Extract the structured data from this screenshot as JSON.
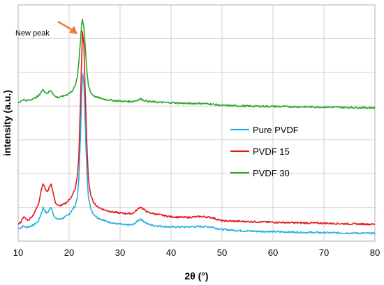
{
  "chart_data": {
    "type": "line",
    "xlabel": "2θ (°)",
    "ylabel": "intensity (a.u.)",
    "xlim": [
      10,
      80
    ],
    "x_ticks": [
      10,
      20,
      30,
      40,
      50,
      60,
      70,
      80
    ],
    "x_tick_labels": [
      "10",
      "20",
      "30",
      "40",
      "50",
      "60",
      "70",
      "80"
    ],
    "ylim": [
      0,
      7
    ],
    "y_ticks": [
      0,
      1,
      2,
      3,
      4,
      5,
      6,
      7
    ],
    "y_tick_labels_visible": false,
    "grid": true,
    "legend_position": "right",
    "annotation": {
      "text": "New peak",
      "x": 22.2,
      "y": 6.0,
      "arrow_color": "#ed7d31"
    },
    "series": [
      {
        "name": "Pure PVDF",
        "color": "#21aee0",
        "points": [
          [
            10.0,
            0.38
          ],
          [
            10.5,
            0.39
          ],
          [
            11.0,
            0.45
          ],
          [
            11.5,
            0.41
          ],
          [
            12.0,
            0.42
          ],
          [
            13.0,
            0.47
          ],
          [
            14.0,
            0.6
          ],
          [
            14.5,
            0.8
          ],
          [
            14.9,
            1.0
          ],
          [
            15.3,
            0.88
          ],
          [
            15.7,
            0.82
          ],
          [
            16.2,
            0.95
          ],
          [
            16.5,
            1.0
          ],
          [
            16.9,
            0.8
          ],
          [
            17.3,
            0.68
          ],
          [
            17.8,
            0.65
          ],
          [
            18.5,
            0.66
          ],
          [
            19.3,
            0.72
          ],
          [
            20.0,
            0.8
          ],
          [
            20.6,
            0.92
          ],
          [
            21.2,
            1.05
          ],
          [
            21.6,
            1.3
          ],
          [
            21.9,
            1.8
          ],
          [
            22.2,
            3.0
          ],
          [
            22.5,
            4.5
          ],
          [
            22.7,
            4.98
          ],
          [
            22.9,
            4.7
          ],
          [
            23.2,
            3.3
          ],
          [
            23.5,
            2.0
          ],
          [
            23.8,
            1.3
          ],
          [
            24.2,
            0.98
          ],
          [
            24.7,
            0.82
          ],
          [
            25.5,
            0.7
          ],
          [
            27.0,
            0.6
          ],
          [
            29.0,
            0.52
          ],
          [
            31.0,
            0.48
          ],
          [
            32.5,
            0.48
          ],
          [
            33.5,
            0.6
          ],
          [
            34.0,
            0.66
          ],
          [
            34.5,
            0.6
          ],
          [
            35.5,
            0.5
          ],
          [
            37.0,
            0.45
          ],
          [
            40.0,
            0.42
          ],
          [
            43.0,
            0.42
          ],
          [
            46.0,
            0.43
          ],
          [
            48.0,
            0.42
          ],
          [
            50.0,
            0.34
          ],
          [
            55.0,
            0.3
          ],
          [
            60.0,
            0.28
          ],
          [
            65.0,
            0.26
          ],
          [
            70.0,
            0.25
          ],
          [
            75.0,
            0.24
          ],
          [
            80.0,
            0.23
          ]
        ]
      },
      {
        "name": "PVDF 15",
        "color": "#e31a1c",
        "points": [
          [
            10.0,
            0.5
          ],
          [
            10.5,
            0.56
          ],
          [
            11.0,
            0.72
          ],
          [
            11.5,
            0.66
          ],
          [
            12.0,
            0.62
          ],
          [
            13.0,
            0.78
          ],
          [
            14.0,
            1.1
          ],
          [
            14.5,
            1.5
          ],
          [
            14.9,
            1.72
          ],
          [
            15.3,
            1.55
          ],
          [
            15.7,
            1.45
          ],
          [
            16.2,
            1.62
          ],
          [
            16.5,
            1.7
          ],
          [
            16.9,
            1.4
          ],
          [
            17.3,
            1.15
          ],
          [
            17.8,
            1.05
          ],
          [
            18.5,
            1.06
          ],
          [
            19.3,
            1.12
          ],
          [
            20.0,
            1.22
          ],
          [
            20.6,
            1.35
          ],
          [
            21.2,
            1.55
          ],
          [
            21.6,
            1.9
          ],
          [
            21.9,
            2.5
          ],
          [
            22.2,
            4.0
          ],
          [
            22.5,
            5.6
          ],
          [
            22.6,
            6.2
          ],
          [
            22.9,
            5.8
          ],
          [
            23.2,
            4.2
          ],
          [
            23.5,
            2.8
          ],
          [
            23.8,
            1.8
          ],
          [
            24.2,
            1.38
          ],
          [
            24.7,
            1.18
          ],
          [
            25.5,
            1.02
          ],
          [
            27.0,
            0.92
          ],
          [
            29.0,
            0.85
          ],
          [
            31.0,
            0.82
          ],
          [
            32.5,
            0.82
          ],
          [
            33.5,
            0.95
          ],
          [
            34.0,
            1.02
          ],
          [
            34.5,
            0.95
          ],
          [
            35.5,
            0.85
          ],
          [
            37.0,
            0.8
          ],
          [
            40.0,
            0.72
          ],
          [
            43.0,
            0.7
          ],
          [
            46.0,
            0.73
          ],
          [
            48.0,
            0.7
          ],
          [
            50.0,
            0.6
          ],
          [
            55.0,
            0.58
          ],
          [
            60.0,
            0.56
          ],
          [
            65.0,
            0.54
          ],
          [
            70.0,
            0.53
          ],
          [
            75.0,
            0.51
          ],
          [
            80.0,
            0.5
          ]
        ]
      },
      {
        "name": "PVDF 30",
        "color": "#2ca62c",
        "points": [
          [
            10.0,
            4.1
          ],
          [
            10.5,
            4.14
          ],
          [
            11.0,
            4.2
          ],
          [
            11.5,
            4.15
          ],
          [
            12.0,
            4.18
          ],
          [
            13.0,
            4.22
          ],
          [
            14.0,
            4.3
          ],
          [
            14.5,
            4.42
          ],
          [
            14.9,
            4.48
          ],
          [
            15.3,
            4.42
          ],
          [
            15.7,
            4.38
          ],
          [
            16.2,
            4.44
          ],
          [
            16.5,
            4.46
          ],
          [
            16.9,
            4.36
          ],
          [
            17.3,
            4.28
          ],
          [
            17.8,
            4.26
          ],
          [
            18.5,
            4.28
          ],
          [
            19.3,
            4.32
          ],
          [
            20.0,
            4.38
          ],
          [
            20.6,
            4.45
          ],
          [
            21.2,
            4.6
          ],
          [
            21.6,
            4.85
          ],
          [
            21.9,
            5.3
          ],
          [
            22.2,
            5.9
          ],
          [
            22.5,
            6.5
          ],
          [
            22.6,
            6.58
          ],
          [
            22.9,
            6.35
          ],
          [
            23.2,
            5.7
          ],
          [
            23.5,
            5.0
          ],
          [
            23.8,
            4.6
          ],
          [
            24.2,
            4.42
          ],
          [
            24.7,
            4.32
          ],
          [
            25.5,
            4.26
          ],
          [
            27.0,
            4.2
          ],
          [
            29.0,
            4.16
          ],
          [
            31.0,
            4.14
          ],
          [
            32.5,
            4.14
          ],
          [
            33.5,
            4.18
          ],
          [
            34.0,
            4.22
          ],
          [
            34.5,
            4.18
          ],
          [
            35.5,
            4.14
          ],
          [
            37.0,
            4.12
          ],
          [
            40.0,
            4.1
          ],
          [
            43.0,
            4.08
          ],
          [
            46.0,
            4.08
          ],
          [
            48.0,
            4.06
          ],
          [
            50.0,
            4.02
          ],
          [
            55.0,
            4.0
          ],
          [
            60.0,
            3.99
          ],
          [
            65.0,
            3.98
          ],
          [
            70.0,
            3.97
          ],
          [
            75.0,
            3.96
          ],
          [
            80.0,
            3.95
          ]
        ]
      }
    ]
  }
}
